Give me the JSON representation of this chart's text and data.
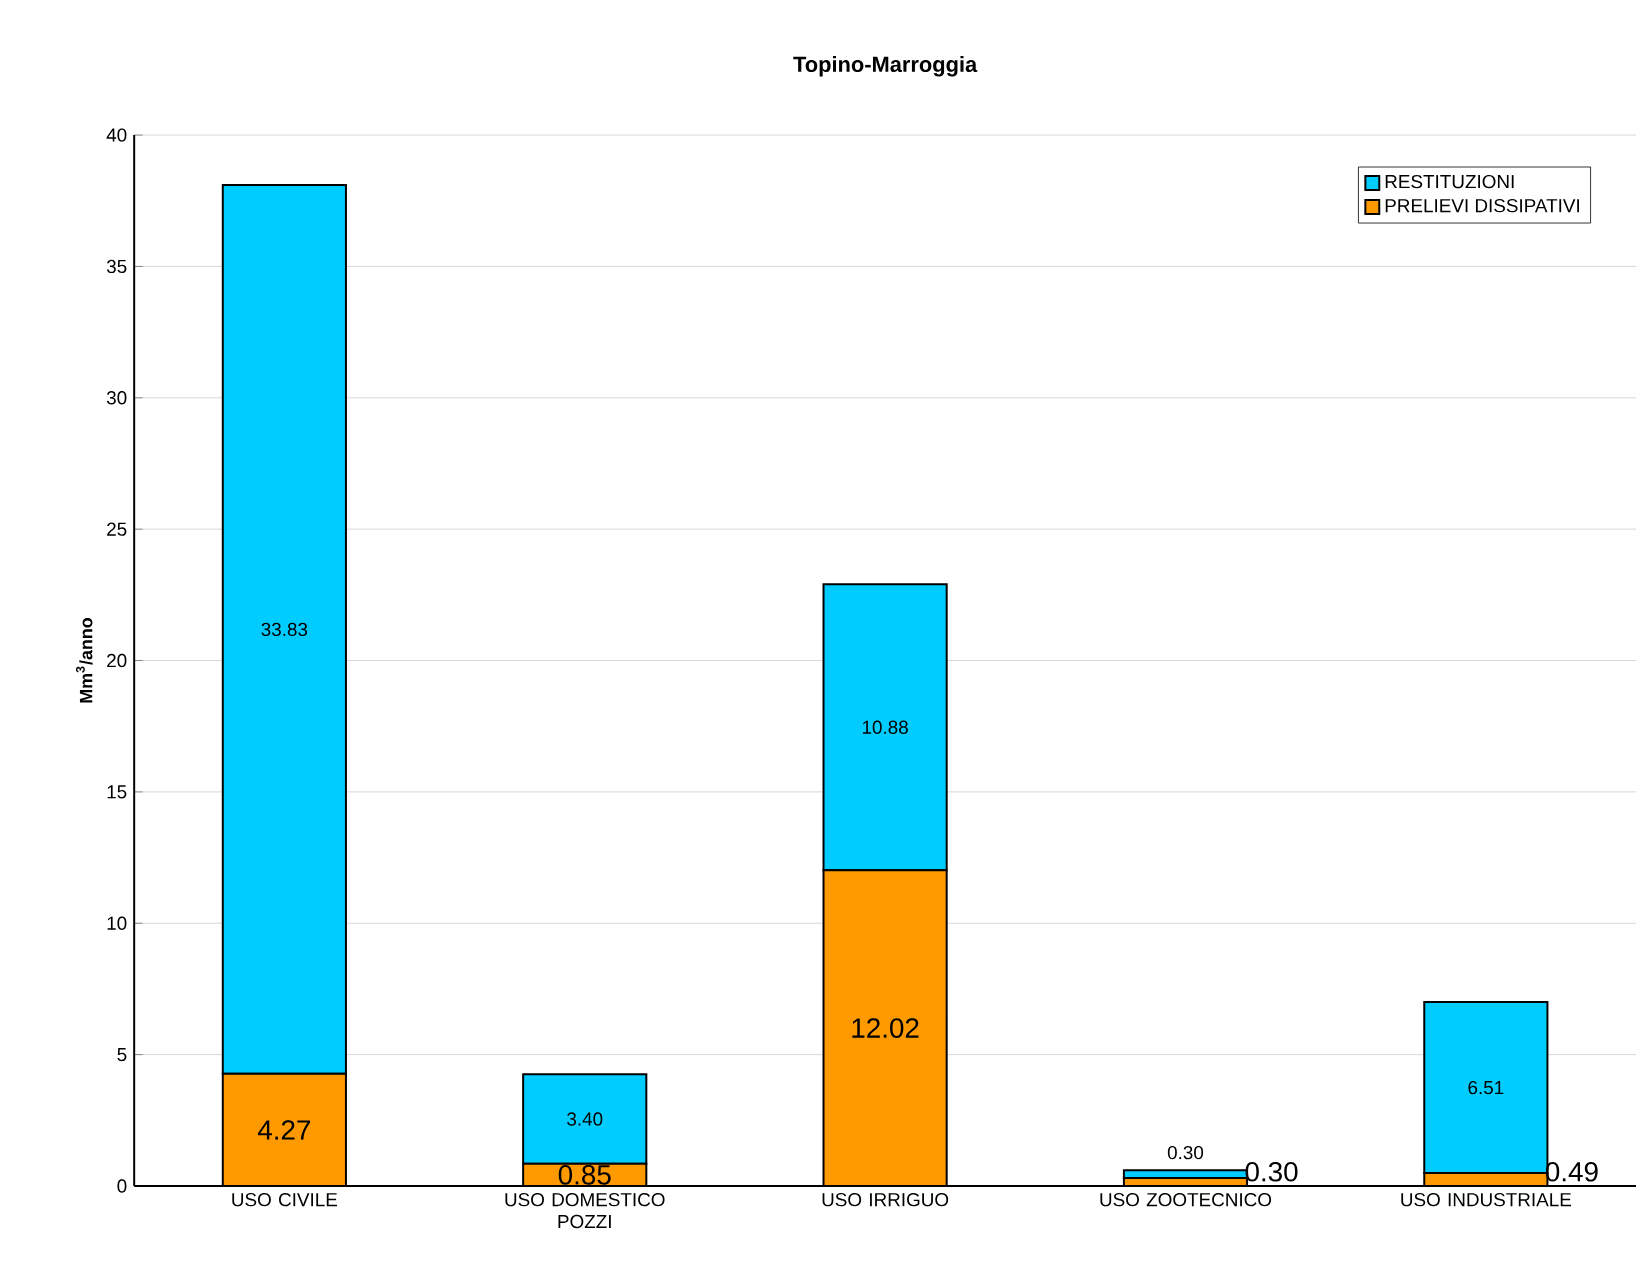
{
  "chart_data": {
    "type": "bar",
    "title": "Topino-Marroggia",
    "ylabel": "Mm$^{3}$/anno",
    "stacked": true,
    "categories": [
      "USO CIVILE",
      "USO DOMESTICO POZZI",
      "USO IRRIGUO",
      "USO ZOOTECNICO",
      "USO INDUSTRIALE"
    ],
    "series": [
      {
        "name": "PRELIEVI DISSIPATIVI",
        "color": "#ff9900",
        "values": [
          4.27,
          0.85,
          12.02,
          0.3,
          0.49
        ],
        "value_labels": [
          "4.27",
          "0.85",
          "12.02",
          "0.30",
          "0.49"
        ]
      },
      {
        "name": "RESTITUZIONI",
        "color": "#00ccff",
        "values": [
          33.83,
          3.4,
          10.88,
          0.3,
          6.51
        ],
        "value_labels": [
          "33.83",
          "3.40",
          "10.88",
          "0.30",
          "6.51"
        ]
      }
    ],
    "ylim": [
      0,
      40
    ],
    "yticks": [
      0,
      5,
      10,
      15,
      20,
      25,
      30,
      35,
      40
    ],
    "grid": "y",
    "legend": "top right"
  }
}
